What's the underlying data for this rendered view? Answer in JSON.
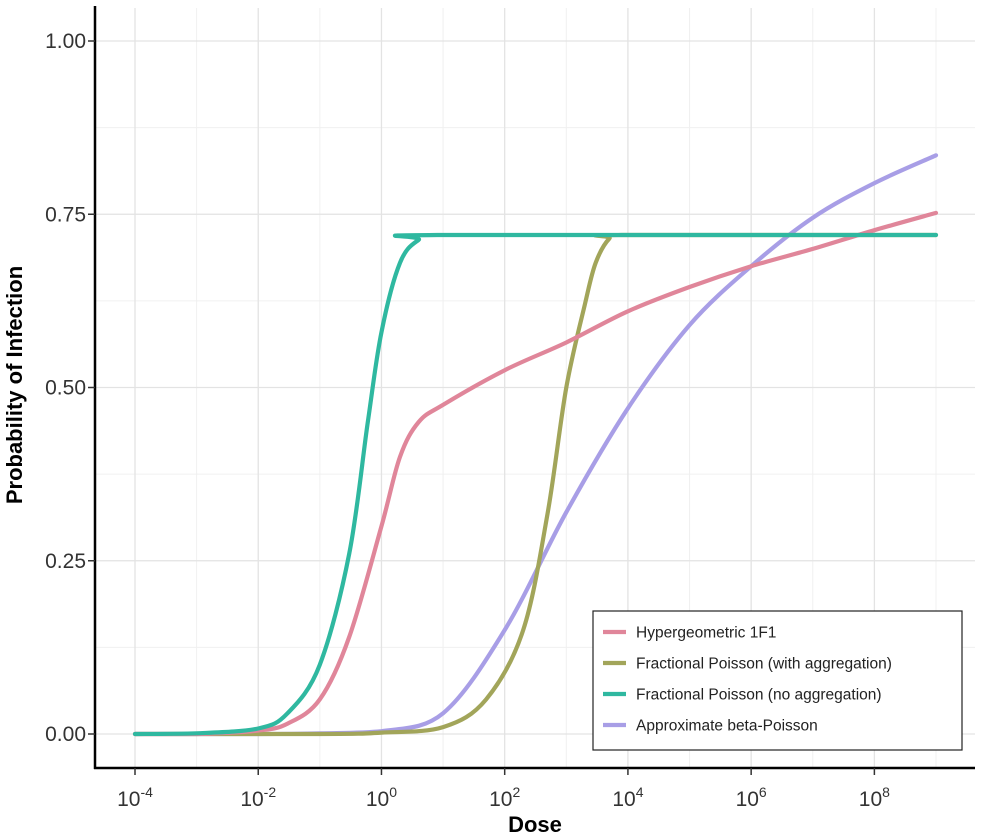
{
  "chart_data": {
    "type": "line",
    "xlabel": "Dose",
    "ylabel": "Probability of Infection",
    "x_scale": "log10",
    "xlim": [
      0.0001,
      1000000000
    ],
    "ylim": [
      0,
      1
    ],
    "grid": true,
    "legend_position": "bottom-right",
    "x_ticks": [
      {
        "base": "10",
        "exp": "-4",
        "value": 0.0001
      },
      {
        "base": "10",
        "exp": "-2",
        "value": 0.01
      },
      {
        "base": "10",
        "exp": "0",
        "value": 1
      },
      {
        "base": "10",
        "exp": "2",
        "value": 100
      },
      {
        "base": "10",
        "exp": "4",
        "value": 10000
      },
      {
        "base": "10",
        "exp": "6",
        "value": 1000000
      },
      {
        "base": "10",
        "exp": "8",
        "value": 100000000
      }
    ],
    "y_ticks": [
      {
        "label": "0.00",
        "value": 0
      },
      {
        "label": "0.25",
        "value": 0.25
      },
      {
        "label": "0.50",
        "value": 0.5
      },
      {
        "label": "0.75",
        "value": 0.75
      },
      {
        "label": "1.00",
        "value": 1
      }
    ],
    "series": [
      {
        "name": "Hypergeometric 1F1",
        "color": "#e0869a",
        "points": [
          [
            0.0001,
            0.0
          ],
          [
            0.001,
            0.0
          ],
          [
            0.01,
            0.005
          ],
          [
            0.03,
            0.015
          ],
          [
            0.1,
            0.05
          ],
          [
            0.3,
            0.14
          ],
          [
            1,
            0.3
          ],
          [
            2,
            0.4
          ],
          [
            4,
            0.45
          ],
          [
            10,
            0.475
          ],
          [
            100,
            0.525
          ],
          [
            1000,
            0.565
          ],
          [
            10000,
            0.61
          ],
          [
            100000,
            0.645
          ],
          [
            1000000,
            0.675
          ],
          [
            10000000,
            0.7
          ],
          [
            100000000,
            0.727
          ],
          [
            1000000000,
            0.752
          ]
        ]
      },
      {
        "name": "Fractional Poisson (with aggregation)",
        "color": "#a2a55a",
        "points": [
          [
            0.0001,
            0.0
          ],
          [
            0.1,
            0.0
          ],
          [
            1,
            0.002
          ],
          [
            10,
            0.01
          ],
          [
            50,
            0.05
          ],
          [
            200,
            0.15
          ],
          [
            500,
            0.32
          ],
          [
            1000,
            0.5
          ],
          [
            2000,
            0.62
          ],
          [
            3000,
            0.68
          ],
          [
            5000,
            0.715
          ],
          [
            8000,
            0.72
          ],
          [
            1000000000,
            0.72
          ]
        ]
      },
      {
        "name": "Fractional Poisson (no aggregation)",
        "color": "#2fb8a0",
        "points": [
          [
            0.0001,
            0.0
          ],
          [
            0.001,
            0.001
          ],
          [
            0.01,
            0.008
          ],
          [
            0.03,
            0.03
          ],
          [
            0.1,
            0.1
          ],
          [
            0.3,
            0.26
          ],
          [
            0.6,
            0.45
          ],
          [
            1,
            0.58
          ],
          [
            2,
            0.68
          ],
          [
            4,
            0.713
          ],
          [
            8,
            0.72
          ],
          [
            1000000000,
            0.72
          ]
        ]
      },
      {
        "name": "Approximate beta-Poisson",
        "color": "#a89ee6",
        "points": [
          [
            0.0001,
            0.0
          ],
          [
            0.01,
            0.0
          ],
          [
            0.1,
            0.001
          ],
          [
            1,
            0.004
          ],
          [
            10,
            0.03
          ],
          [
            100,
            0.15
          ],
          [
            1000,
            0.32
          ],
          [
            10000,
            0.47
          ],
          [
            100000,
            0.59
          ],
          [
            1000000,
            0.675
          ],
          [
            10000000,
            0.745
          ],
          [
            100000000,
            0.795
          ],
          [
            1000000000,
            0.835
          ]
        ]
      }
    ]
  }
}
